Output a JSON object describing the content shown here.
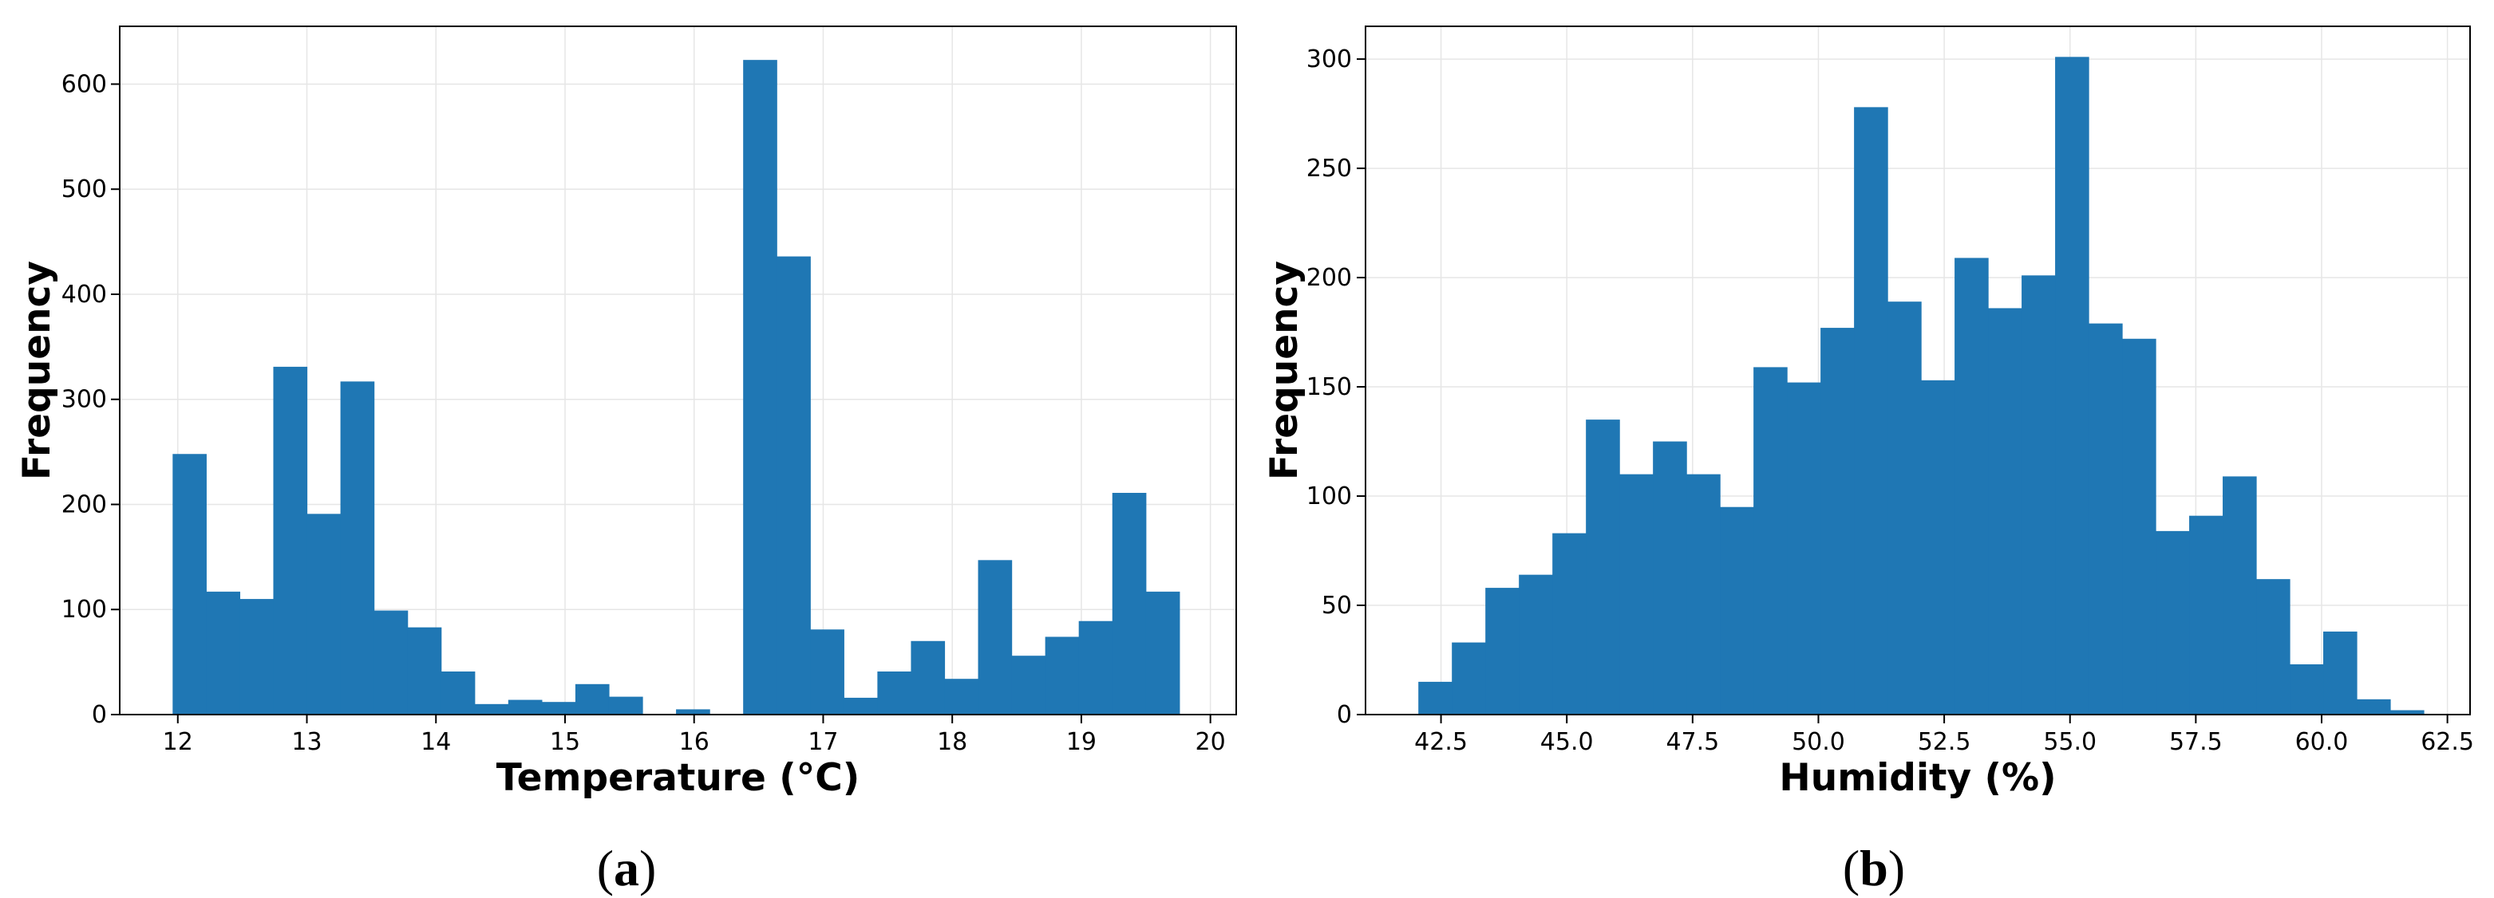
{
  "figure": {
    "panel_captions": [
      "a",
      "b"
    ]
  },
  "chart_data": [
    {
      "type": "bar",
      "subtype": "histogram",
      "title": "",
      "xlabel": "Temperature (°C)",
      "ylabel": "Frequency",
      "xlim": [
        11.55,
        20.2
      ],
      "ylim": [
        0,
        655
      ],
      "xticks": [
        "12",
        "13",
        "14",
        "15",
        "16",
        "17",
        "18",
        "19",
        "20"
      ],
      "yticks": [
        "0",
        "100",
        "200",
        "300",
        "400",
        "500",
        "600"
      ],
      "grid": true,
      "bar_color": "#1f77b4",
      "bin_edges": [
        11.96,
        12.22,
        12.48,
        12.74,
        13.0,
        13.26,
        13.52,
        13.78,
        14.04,
        14.3,
        14.56,
        14.82,
        15.08,
        15.34,
        15.6,
        15.86,
        16.12,
        16.38,
        16.64,
        16.9,
        17.16,
        17.42,
        17.68,
        17.94,
        18.2,
        18.46,
        18.72,
        18.98,
        19.24,
        19.5,
        19.76
      ],
      "values": [
        248,
        117,
        110,
        331,
        191,
        317,
        99,
        83,
        41,
        10,
        14,
        12,
        29,
        17,
        0,
        5,
        0,
        623,
        436,
        81,
        16,
        41,
        70,
        34,
        147,
        56,
        74,
        89,
        211,
        117
      ]
    },
    {
      "type": "bar",
      "subtype": "histogram",
      "title": "",
      "xlabel": "Humidity (%)",
      "ylabel": "Frequency",
      "xlim": [
        41.0,
        62.95
      ],
      "ylim": [
        0,
        315
      ],
      "xticks": [
        "42.5",
        "45.0",
        "47.5",
        "50.0",
        "52.5",
        "55.0",
        "57.5",
        "60.0",
        "62.5"
      ],
      "yticks": [
        "0",
        "50",
        "100",
        "150",
        "200",
        "250",
        "300"
      ],
      "grid": true,
      "bar_color": "#1f77b4",
      "bin_edges": [
        42.05,
        42.716,
        43.382,
        44.048,
        44.714,
        45.38,
        46.046,
        46.712,
        47.378,
        48.044,
        48.71,
        49.376,
        50.042,
        50.708,
        51.374,
        52.04,
        52.706,
        53.372,
        54.038,
        54.704,
        55.37,
        56.036,
        56.702,
        57.368,
        58.034,
        58.7,
        59.366,
        60.032,
        60.698,
        61.364,
        62.03
      ],
      "values": [
        15,
        33,
        58,
        64,
        83,
        135,
        110,
        125,
        110,
        95,
        159,
        152,
        177,
        278,
        189,
        153,
        209,
        186,
        201,
        301,
        179,
        172,
        84,
        91,
        109,
        62,
        23,
        38,
        7,
        2
      ]
    }
  ]
}
